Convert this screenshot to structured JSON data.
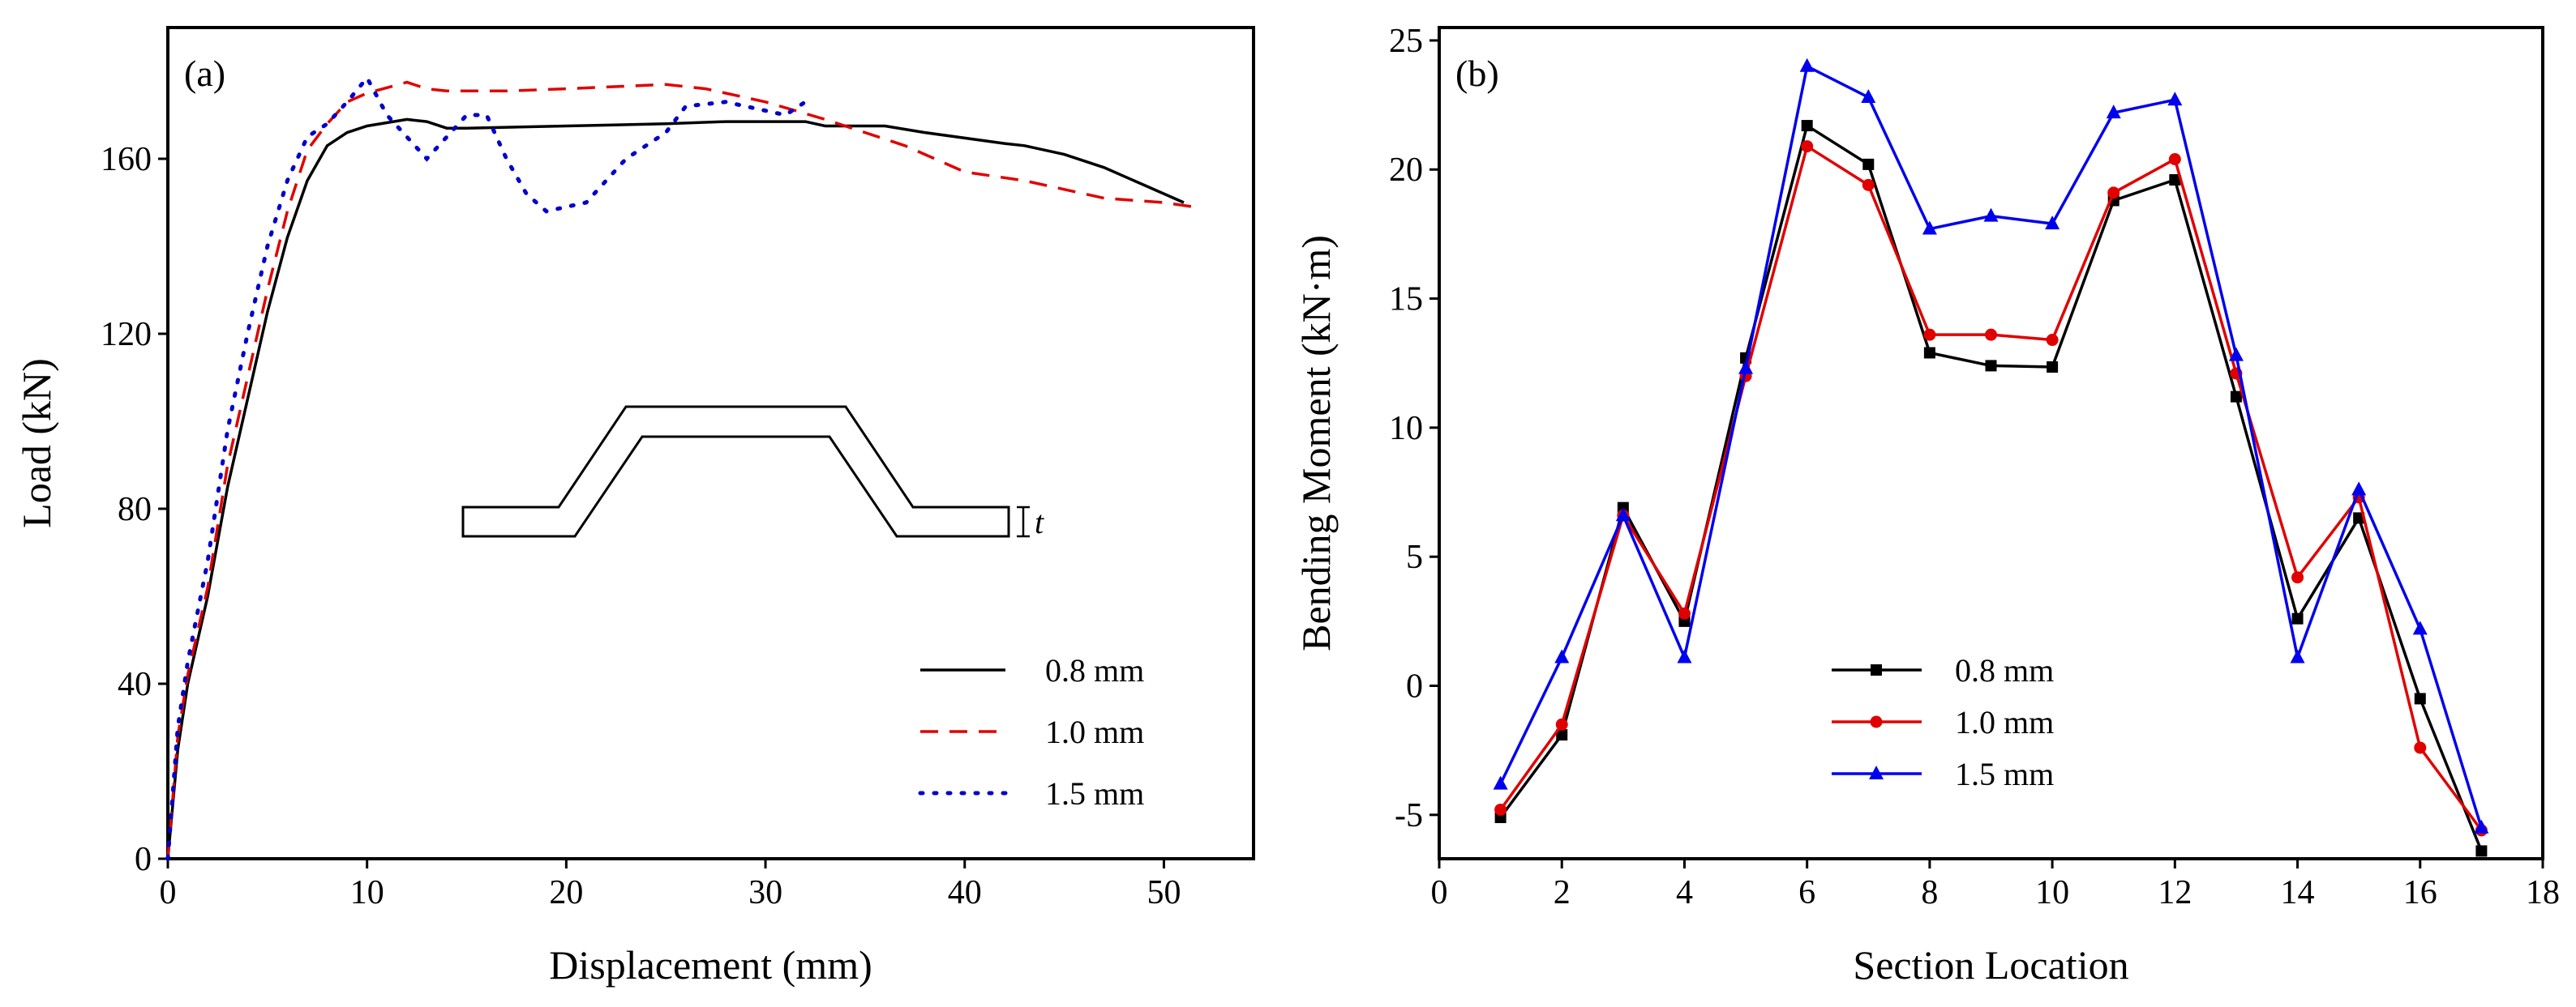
{
  "chart_data": [
    {
      "type": "line",
      "panel_label": "(a)",
      "xlabel": "Displacement (mm)",
      "ylabel": "Load (kN)",
      "xlim": [
        0,
        54.5
      ],
      "ylim": [
        0,
        190
      ],
      "xticks": [
        0,
        10,
        20,
        30,
        40,
        50
      ],
      "yticks": [
        0,
        40,
        80,
        120,
        160
      ],
      "legend_position": "bottom-right",
      "inset_label": "t",
      "series": [
        {
          "name": "0.8 mm",
          "color": "#000000",
          "style": "solid",
          "x": [
            0,
            0.5,
            1,
            2,
            3,
            4,
            5,
            6,
            7,
            8,
            9,
            10,
            12,
            13,
            14,
            15,
            20,
            25,
            28,
            32,
            33,
            36,
            38,
            42,
            43,
            45,
            47,
            49,
            51
          ],
          "y": [
            0,
            25,
            40,
            60,
            85,
            105,
            125,
            142,
            155,
            163,
            166,
            167.5,
            169,
            168.5,
            167,
            167,
            167.5,
            168,
            168.5,
            168.5,
            167.5,
            167.5,
            166,
            163.5,
            163,
            161,
            158,
            154,
            150
          ]
        },
        {
          "name": "1.0 mm",
          "color": "#e00000",
          "style": "dashed",
          "x": [
            0,
            0.5,
            1,
            2,
            3,
            4,
            5,
            6,
            7,
            8,
            9,
            10,
            12,
            13,
            14,
            17,
            20,
            25,
            27,
            30,
            33,
            35,
            37,
            40,
            43,
            45,
            47,
            50,
            51.5
          ],
          "y": [
            0,
            28,
            42,
            62,
            90,
            110,
            130,
            148,
            162,
            168,
            173,
            175,
            177.5,
            176,
            175.5,
            175.5,
            176,
            177,
            176,
            173,
            169,
            166,
            163,
            157,
            155,
            153,
            151,
            150,
            149
          ]
        },
        {
          "name": "1.5 mm",
          "color": "#0000cc",
          "style": "dotted",
          "x": [
            0,
            0.5,
            1,
            2,
            3,
            4,
            5,
            6,
            7,
            8,
            9,
            10,
            11,
            12,
            13,
            14,
            15,
            16,
            17,
            18,
            19,
            21,
            23,
            25,
            26,
            28,
            30,
            31,
            32
          ],
          "y": [
            0,
            30,
            45,
            68,
            98,
            120,
            140,
            155,
            165,
            168,
            173,
            178.5,
            170,
            165,
            160,
            165,
            170,
            170,
            160,
            152,
            148,
            150,
            160,
            166,
            172,
            173,
            171,
            170,
            173
          ]
        }
      ]
    },
    {
      "type": "line",
      "panel_label": "(b)",
      "xlabel": "Section Location",
      "ylabel": "Bending Moment (kN·m)",
      "xlim": [
        0,
        18
      ],
      "ylim": [
        -6.7,
        25.5
      ],
      "xticks": [
        0,
        2,
        4,
        6,
        8,
        10,
        12,
        14,
        16,
        18
      ],
      "yticks": [
        -5,
        0,
        5,
        10,
        15,
        20,
        25
      ],
      "legend_position": "bottom-center",
      "x": [
        1,
        2,
        3,
        4,
        5,
        6,
        7,
        8,
        9,
        10,
        11,
        12,
        13,
        14,
        15,
        16,
        17
      ],
      "series": [
        {
          "name": "0.8 mm",
          "color": "#000000",
          "marker": "square",
          "values": [
            -5.1,
            -1.9,
            6.9,
            2.5,
            12.7,
            21.7,
            20.2,
            12.9,
            12.4,
            12.35,
            18.8,
            19.6,
            11.2,
            2.6,
            6.5,
            -0.5,
            -6.4
          ]
        },
        {
          "name": "1.0 mm",
          "color": "#e00000",
          "marker": "circle",
          "values": [
            -4.8,
            -1.5,
            6.6,
            2.8,
            12.0,
            20.9,
            19.4,
            13.6,
            13.6,
            13.4,
            19.1,
            20.4,
            12.1,
            4.2,
            7.3,
            -2.4,
            -5.6
          ]
        },
        {
          "name": "1.5 mm",
          "color": "#0000ee",
          "marker": "triangle",
          "values": [
            -3.8,
            1.1,
            6.6,
            1.1,
            12.3,
            24.0,
            22.8,
            17.7,
            18.2,
            17.9,
            22.2,
            22.7,
            12.8,
            1.1,
            7.6,
            2.2,
            -5.5
          ]
        }
      ]
    }
  ]
}
